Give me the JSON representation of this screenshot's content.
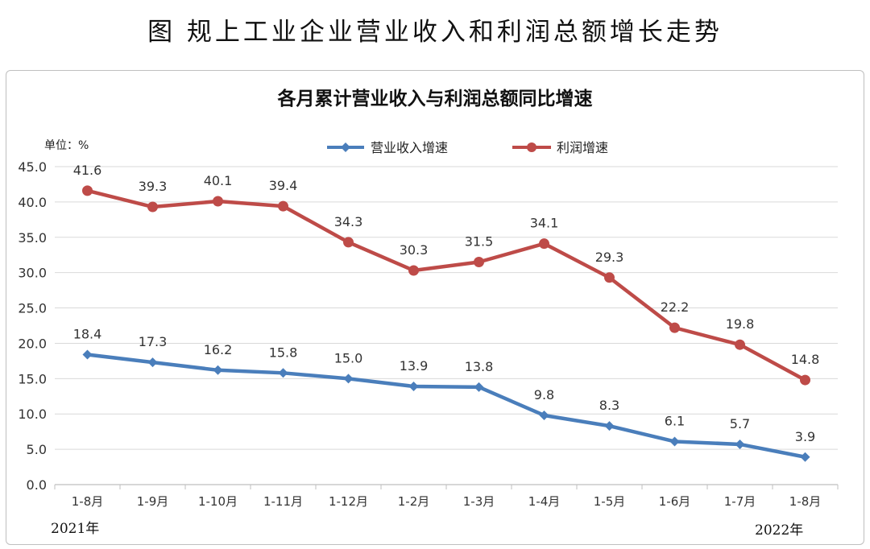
{
  "page_title": "图  规上工业企业营业收入和利润总额增长走势",
  "chart_data": {
    "type": "line",
    "title": "各月累计营业收入与利润总额同比增速",
    "unit_label": "单位：%",
    "categories": [
      "1-8月",
      "1-9月",
      "1-10月",
      "1-11月",
      "1-12月",
      "1-2月",
      "1-3月",
      "1-4月",
      "1-5月",
      "1-6月",
      "1-7月",
      "1-8月"
    ],
    "year_start_label": "2021年",
    "year_end_label": "2022年",
    "ylim": [
      0,
      45
    ],
    "y_ticks": [
      "0.0",
      "5.0",
      "10.0",
      "15.0",
      "20.0",
      "25.0",
      "30.0",
      "35.0",
      "40.0",
      "45.0"
    ],
    "grid": true,
    "legend_position": "top",
    "series": [
      {
        "name": "营业收入增速",
        "color": "#4a7ebb",
        "marker": "diamond",
        "values": [
          18.4,
          17.3,
          16.2,
          15.8,
          15.0,
          13.9,
          13.8,
          9.8,
          8.3,
          6.1,
          5.7,
          3.9
        ],
        "labels": [
          "18.4",
          "17.3",
          "16.2",
          "15.8",
          "15.0",
          "13.9",
          "13.8",
          "9.8",
          "8.3",
          "6.1",
          "5.7",
          "3.9"
        ]
      },
      {
        "name": "利润增速",
        "color": "#be4b48",
        "marker": "circle",
        "values": [
          41.6,
          39.3,
          40.1,
          39.4,
          34.3,
          30.3,
          31.5,
          34.1,
          29.3,
          22.2,
          19.8,
          14.8
        ],
        "labels": [
          "41.6",
          "39.3",
          "40.1",
          "39.4",
          "34.3",
          "30.3",
          "31.5",
          "34.1",
          "29.3",
          "22.2",
          "19.8",
          "14.8"
        ]
      }
    ]
  }
}
